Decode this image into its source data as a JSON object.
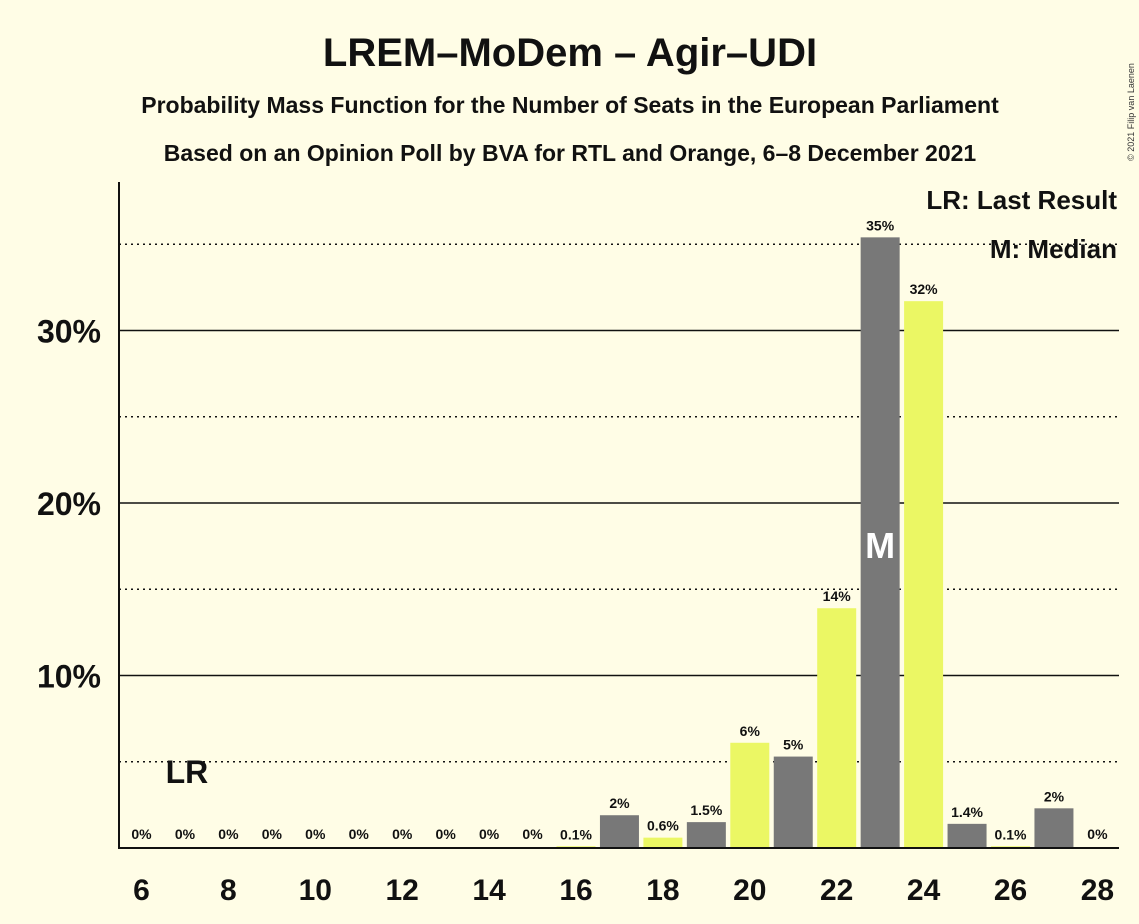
{
  "title": "LREM–MoDem – Agir–UDI",
  "subtitle1": "Probability Mass Function for the Number of Seats in the European Parliament",
  "subtitle2": "Based on an Opinion Poll by BVA for RTL and Orange, 6–8 December 2021",
  "copyright": "© 2021 Filip van Laenen",
  "legend": {
    "last_result": "LR: Last Result",
    "median": "M: Median"
  },
  "colors": {
    "background": "#FFFDE6",
    "gray": "#787878",
    "yellow": "#EBF764"
  },
  "chart_data": {
    "type": "bar",
    "x": [
      6,
      7,
      8,
      9,
      10,
      11,
      12,
      13,
      14,
      15,
      16,
      17,
      18,
      19,
      20,
      21,
      22,
      23,
      24,
      25,
      26,
      27,
      28
    ],
    "values": [
      0,
      0,
      0,
      0,
      0,
      0,
      0,
      0,
      0,
      0,
      0.1,
      1.9,
      0.6,
      1.5,
      6.1,
      5.3,
      13.9,
      35.4,
      31.7,
      1.4,
      0.1,
      2.3,
      0
    ],
    "labels": [
      "0%",
      "0%",
      "0%",
      "0%",
      "0%",
      "0%",
      "0%",
      "0%",
      "0%",
      "0%",
      "0.1%",
      "2%",
      "0.6%",
      "1.5%",
      "6%",
      "5%",
      "14%",
      "35%",
      "32%",
      "1.4%",
      "0.1%",
      "2%",
      "0%"
    ],
    "bar_colors": [
      "yellow",
      "gray",
      "yellow",
      "gray",
      "yellow",
      "gray",
      "yellow",
      "gray",
      "yellow",
      "gray",
      "yellow",
      "gray",
      "yellow",
      "gray",
      "yellow",
      "gray",
      "yellow",
      "gray",
      "yellow",
      "gray",
      "yellow",
      "gray",
      "yellow"
    ],
    "x_ticks": [
      "6",
      "8",
      "10",
      "12",
      "14",
      "16",
      "18",
      "20",
      "22",
      "24",
      "26",
      "28"
    ],
    "y_ticks": [
      {
        "value": 10,
        "label": "10%"
      },
      {
        "value": 20,
        "label": "20%"
      },
      {
        "value": 30,
        "label": "30%"
      }
    ],
    "y_minor_grid": [
      5,
      15,
      25,
      35
    ],
    "ylim": [
      0,
      38.6
    ],
    "last_result": {
      "x": 7,
      "label": "LR"
    },
    "median": {
      "x": 23,
      "label": "M"
    }
  }
}
